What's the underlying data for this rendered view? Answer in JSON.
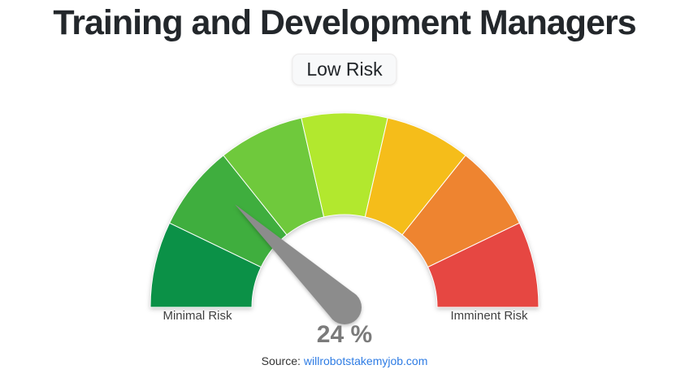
{
  "page": {
    "title": "Training and Development Managers",
    "risk_badge": "Low Risk",
    "source": {
      "prefix": "Source:",
      "link_text": "willrobotstakemyjob.com"
    }
  },
  "chart_data": {
    "type": "gauge",
    "title": "Training and Development Managers",
    "risk_category": "Low Risk",
    "value_percent": 24,
    "value_label": "24 %",
    "scale": {
      "min_percent": 0,
      "max_percent": 100,
      "start_label": "Minimal Risk",
      "end_label": "Imminent Risk"
    },
    "segment_count": 7,
    "segment_colors": [
      "#0b9147",
      "#3fae3e",
      "#6fc93c",
      "#b2e82e",
      "#f5bd1a",
      "#ee8430",
      "#e64742"
    ],
    "needle_color": "#8c8c8c",
    "value_text_color": "#7b7b7b",
    "link_color": "#2e7ce4"
  }
}
